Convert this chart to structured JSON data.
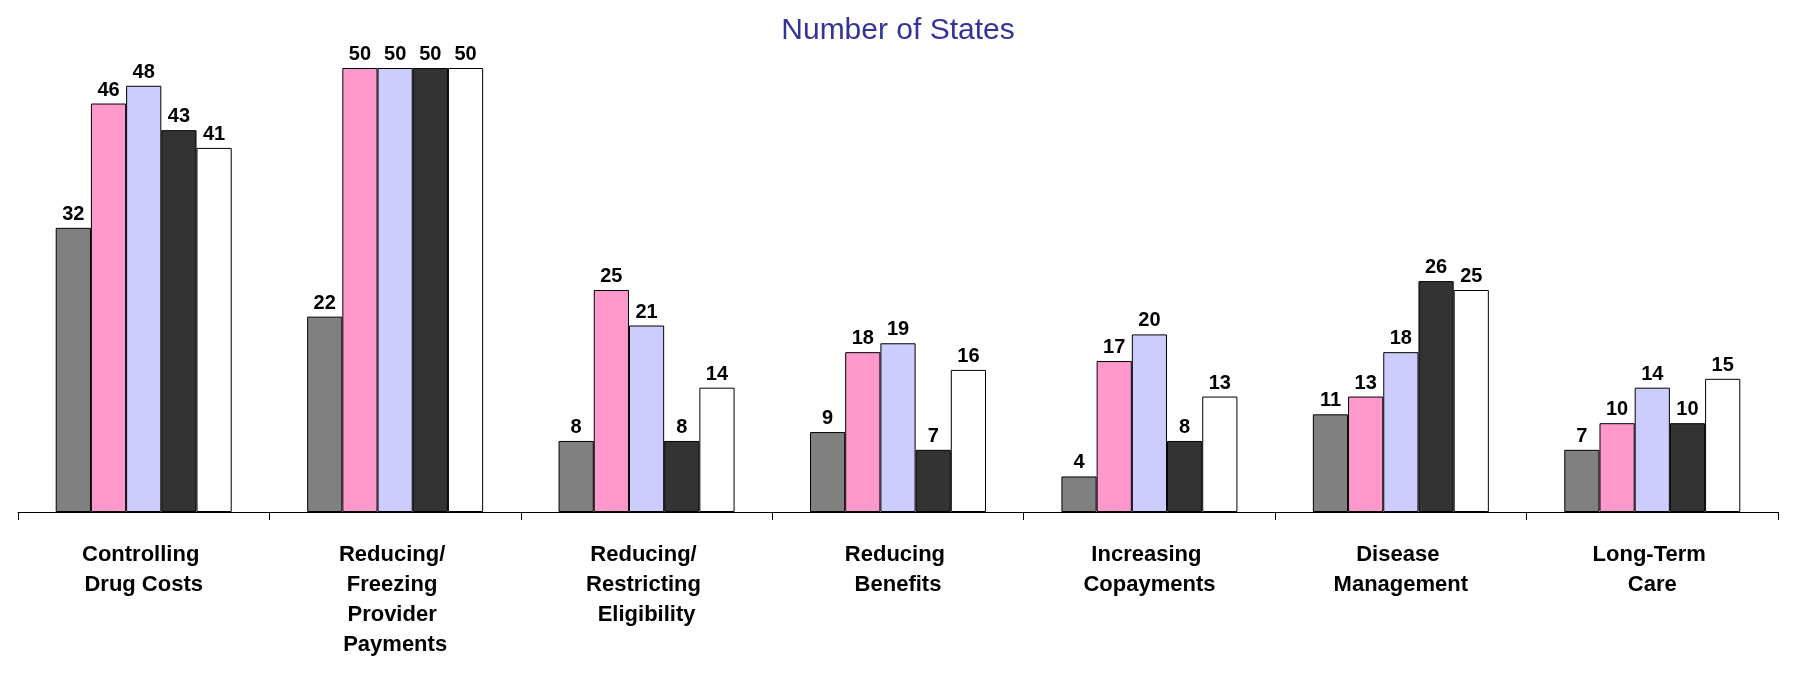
{
  "chart_data": {
    "type": "bar",
    "title": "Number of States",
    "categories": [
      "Controlling Drug Costs",
      "Reducing/ Freezing Provider Payments",
      "Reducing/ Restricting Eligibility",
      "Reducing Benefits",
      "Increasing Copayments",
      "Disease Management",
      "Long-Term Care"
    ],
    "series": [
      {
        "color": "#808080",
        "values": [
          32,
          22,
          8,
          9,
          4,
          11,
          7
        ]
      },
      {
        "color": "#ff99cc",
        "values": [
          46,
          50,
          25,
          18,
          17,
          13,
          10
        ]
      },
      {
        "color": "#ccccff",
        "values": [
          48,
          50,
          21,
          19,
          20,
          18,
          14
        ]
      },
      {
        "color": "#333333",
        "values": [
          43,
          50,
          8,
          7,
          8,
          26,
          10
        ]
      },
      {
        "color": "#ffffff",
        "values": [
          41,
          50,
          14,
          16,
          13,
          25,
          15
        ]
      }
    ],
    "data_labels": true
  }
}
